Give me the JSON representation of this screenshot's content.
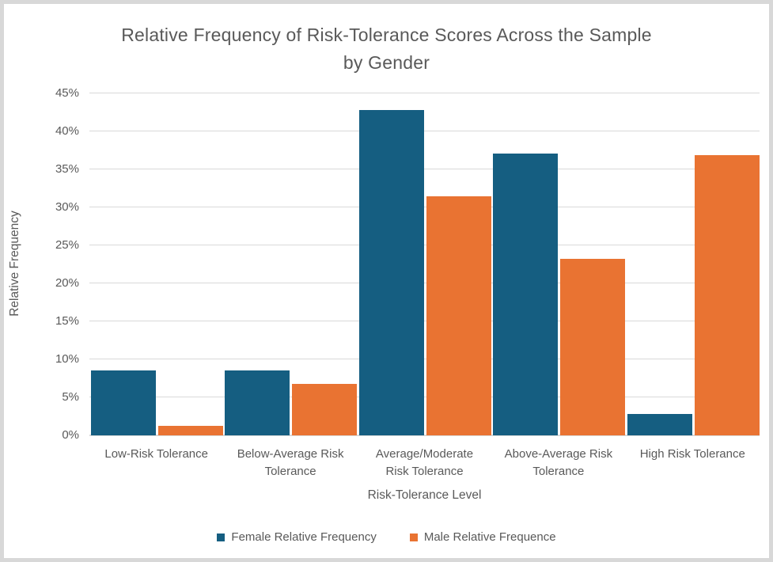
{
  "title": {
    "line1": "Relative Frequency of Risk-Tolerance Scores Across the Sample",
    "line2": "by Gender"
  },
  "chart_data": {
    "type": "bar",
    "title": "Relative Frequency of Risk-Tolerance Scores Across the Sample by Gender",
    "xlabel": "Risk-Tolerance Level",
    "ylabel": "Relative Frequency",
    "categories": [
      "Low-Risk Tolerance",
      "Below-Average Risk Tolerance",
      "Average/Moderate Risk Tolerance",
      "Above-Average Risk Tolerance",
      "High Risk Tolerance"
    ],
    "category_lines": [
      [
        "Low-Risk Tolerance"
      ],
      [
        "Below-Average Risk",
        "Tolerance"
      ],
      [
        "Average/Moderate",
        "Risk Tolerance"
      ],
      [
        "Above-Average Risk",
        "Tolerance"
      ],
      [
        "High Risk Tolerance"
      ]
    ],
    "series": [
      {
        "key": "female",
        "name": "Female Relative Frequency",
        "color": "#155E81",
        "values": [
          8.5,
          8.5,
          42.8,
          37.1,
          2.8
        ]
      },
      {
        "key": "male",
        "name": "Male Relative Frequence",
        "color": "#E97332",
        "values": [
          1.2,
          6.8,
          31.5,
          23.2,
          36.9
        ]
      }
    ],
    "ylim": [
      0,
      45
    ],
    "y_tick_interval": 5,
    "y_tick_values": [
      0,
      5,
      10,
      15,
      20,
      25,
      30,
      35,
      40,
      45
    ],
    "y_tick_labels": [
      "0%",
      "5%",
      "10%",
      "15%",
      "20%",
      "25%",
      "30%",
      "35%",
      "40%",
      "45%"
    ],
    "grid": "horizontal",
    "legend_position": "bottom",
    "value_format": "percent"
  },
  "colors": {
    "female": "#155E81",
    "male": "#E97332",
    "gridline": "#D9D9D9",
    "text": "#595959",
    "frame_border": "#D8D8D8",
    "background": "#FFFFFF"
  }
}
